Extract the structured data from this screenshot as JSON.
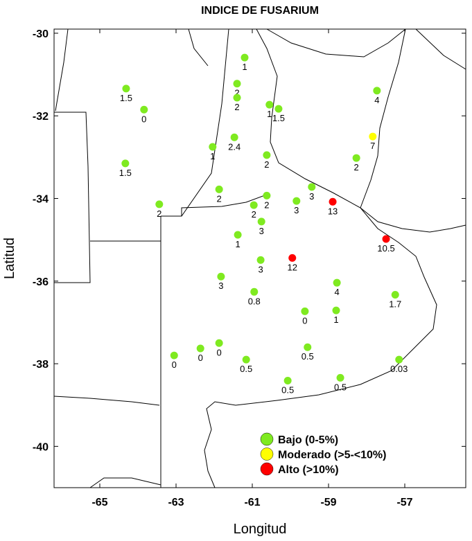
{
  "chart_data": {
    "type": "scatter",
    "title": "INDICE DE FUSARIUM",
    "x_label": "Longitud",
    "y_label": "Latitud",
    "xlim": [
      -66.2,
      -55.4
    ],
    "ylim": [
      -41,
      -29.9
    ],
    "xticks": [
      -65,
      -63,
      -61,
      -59,
      -57
    ],
    "yticks": [
      -30,
      -32,
      -34,
      -36,
      -38,
      -40
    ],
    "legend": "bottom-right",
    "series": [
      {
        "name": "Bajo (0-5%)",
        "color": "#7fea20",
        "x": [
          -61.2,
          -64.31,
          -63.84,
          -61.4,
          -61.4,
          -60.55,
          -60.31,
          -57.73,
          -61.47,
          -62.04,
          -60.62,
          -58.27,
          -64.33,
          -61.87,
          -63.44,
          -60.62,
          -60.96,
          -59.44,
          -59.84,
          -60.76,
          -61.38,
          -60.78,
          -61.82,
          -60.95,
          -58.78,
          -57.25,
          -59.62,
          -58.8,
          -63.05,
          -62.36,
          -61.87,
          -61.16,
          -59.55,
          -57.15,
          -60.07,
          -58.69
        ],
        "values": [
          -30.59,
          -31.34,
          -31.85,
          -31.22,
          -31.56,
          -31.73,
          -31.83,
          -31.39,
          -32.52,
          -32.75,
          -32.95,
          -33.02,
          -33.15,
          -33.78,
          -34.14,
          -33.93,
          -34.16,
          -33.72,
          -34.06,
          -34.56,
          -34.88,
          -35.49,
          -35.89,
          -36.26,
          -36.04,
          -36.33,
          -36.73,
          -36.71,
          -37.8,
          -37.63,
          -37.5,
          -37.9,
          -37.6,
          -37.9,
          -38.41,
          -38.34
        ],
        "labels": [
          1,
          1.5,
          0,
          2,
          2,
          1,
          1.5,
          4,
          2.4,
          1,
          2,
          2,
          1.5,
          2,
          2,
          2,
          2,
          3,
          3,
          3,
          1,
          3,
          3,
          0.8,
          4,
          1.7,
          0,
          1,
          0,
          0,
          0,
          0.5,
          0.5,
          0.03,
          0.5,
          0.5
        ]
      },
      {
        "name": "Moderado (>5-<10%)",
        "color": "#ffff00",
        "x": [
          -57.84
        ],
        "values": [
          -32.5
        ],
        "labels": [
          7
        ]
      },
      {
        "name": "Alto (>10%)",
        "color": "#ff0000",
        "x": [
          -58.89,
          -57.49,
          -59.95
        ],
        "values": [
          -34.08,
          -34.98,
          -35.44
        ],
        "labels": [
          13,
          10.5,
          12
        ]
      }
    ]
  }
}
